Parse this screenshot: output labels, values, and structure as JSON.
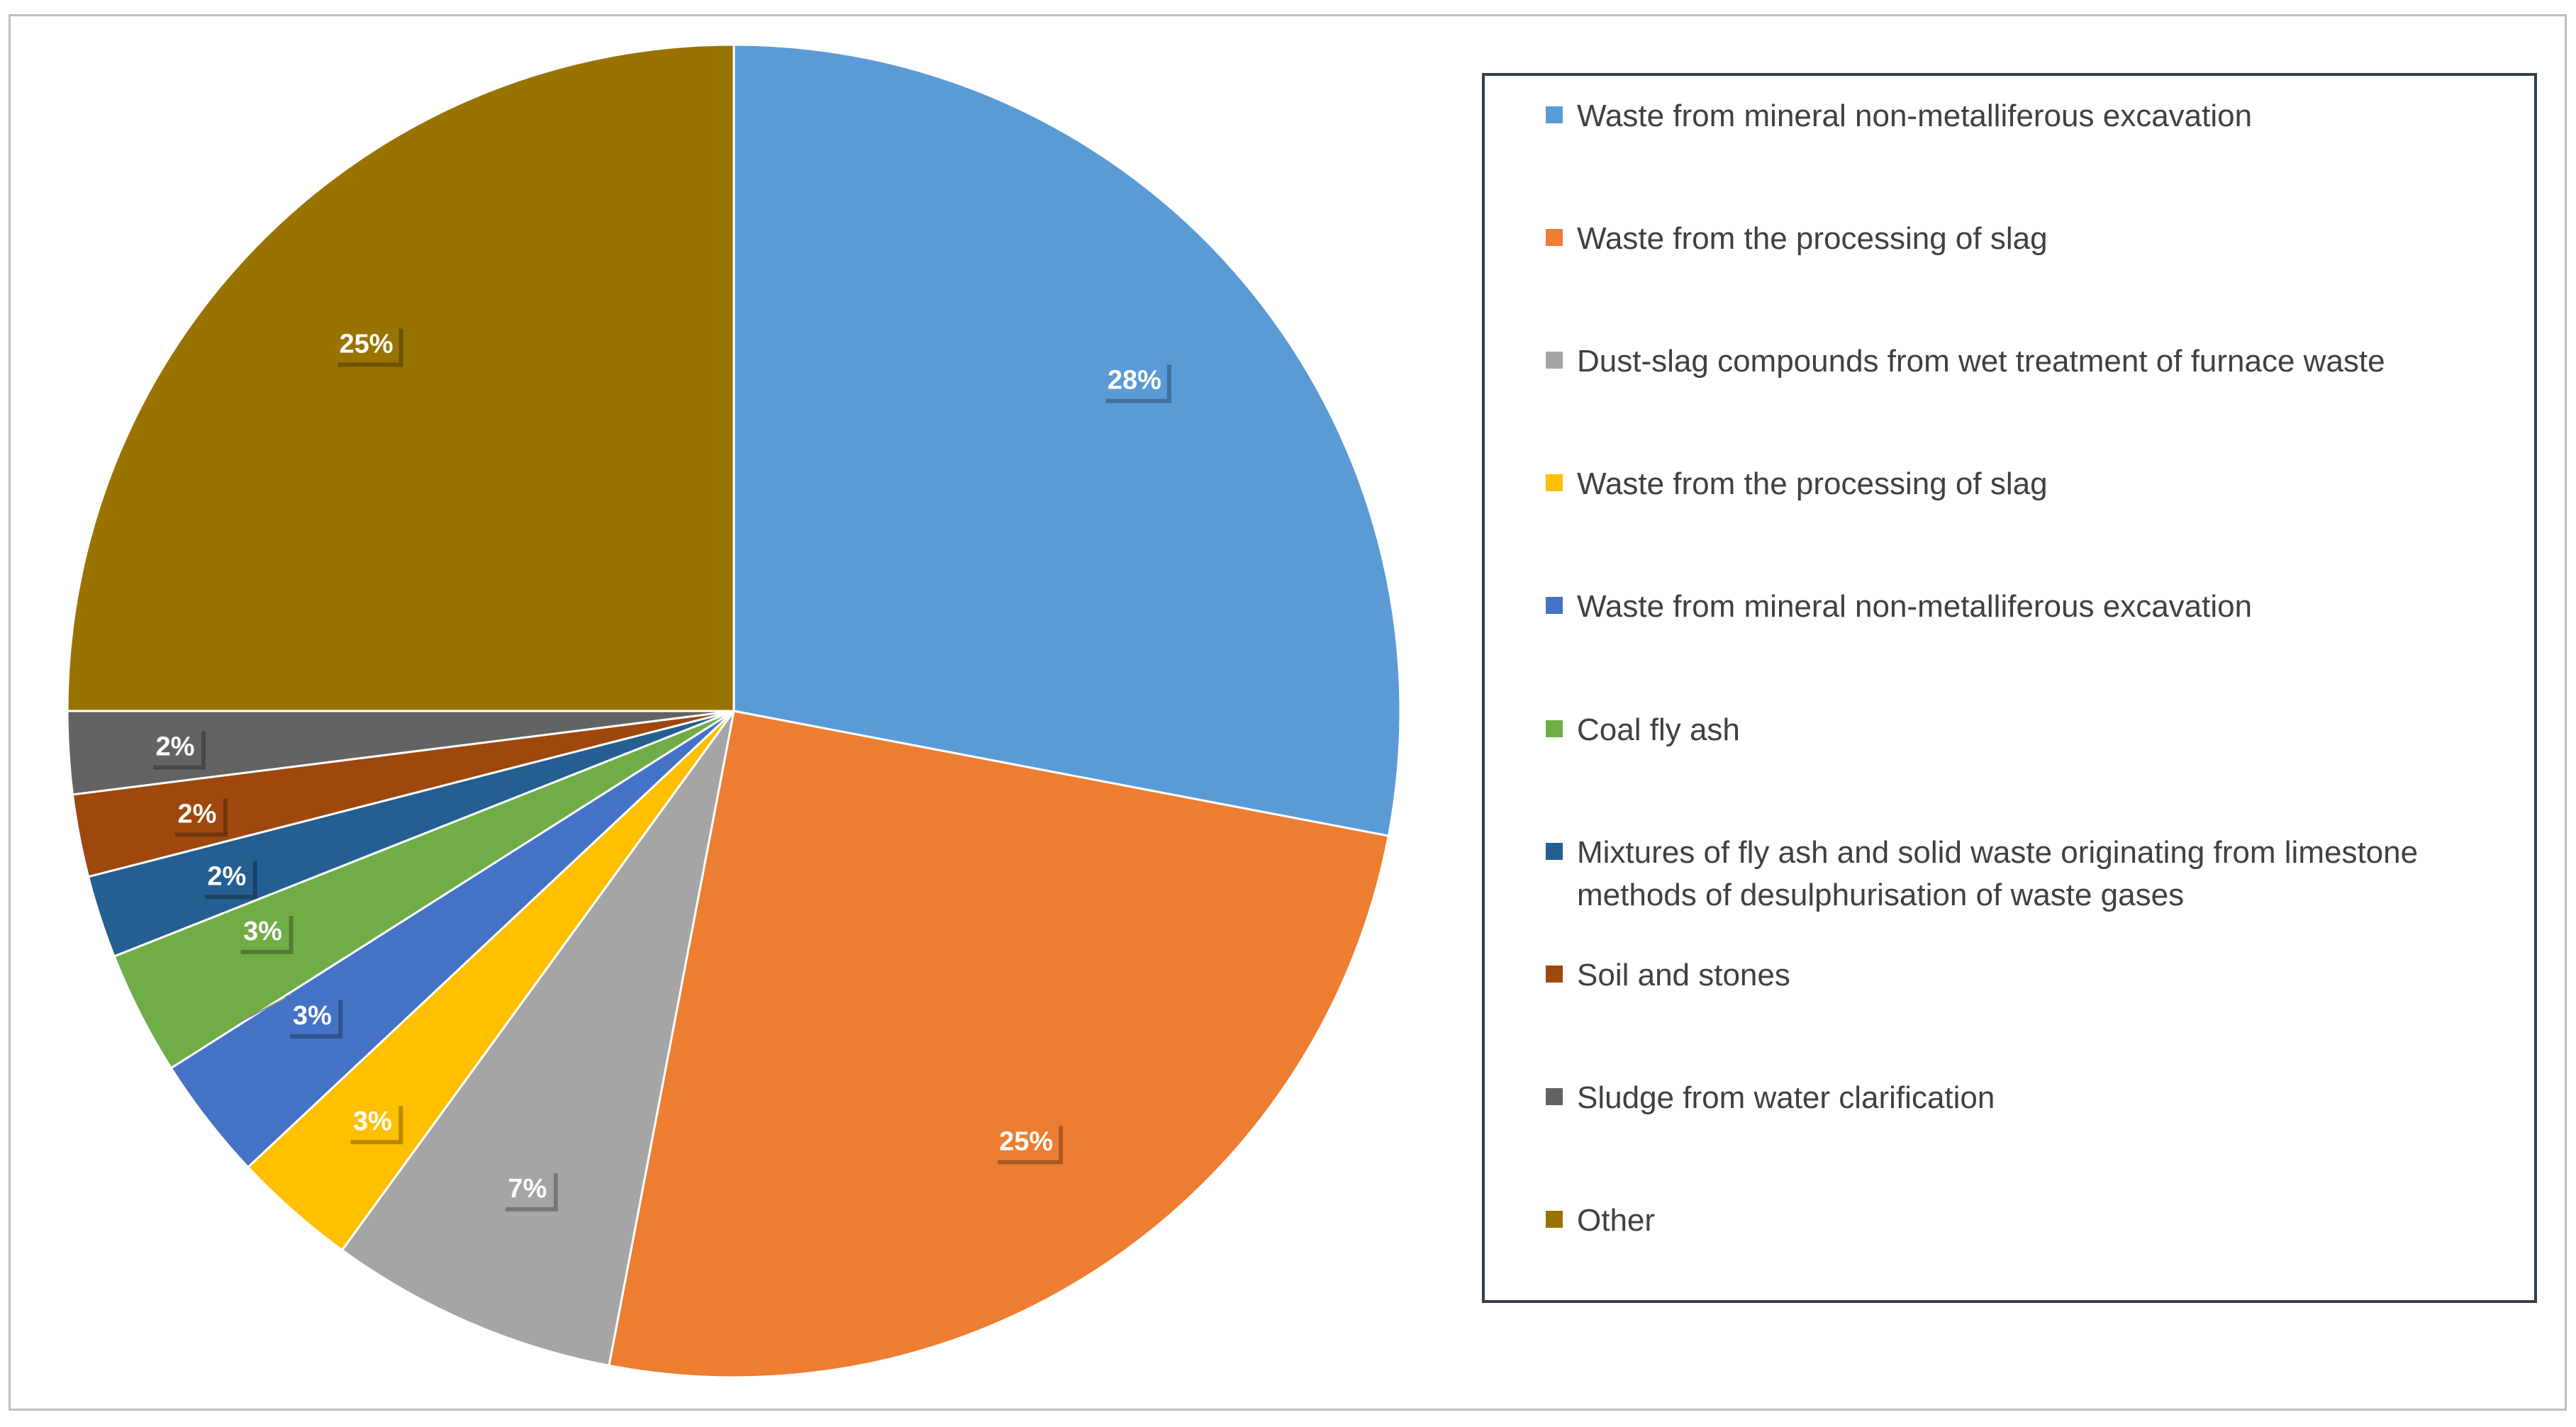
{
  "chart_data": {
    "type": "pie",
    "title": "",
    "legend_position": "right",
    "slices": [
      {
        "label": "Waste from mineral non-metalliferous excavation",
        "value": 28,
        "display": "28%",
        "color": "#5b9bd5"
      },
      {
        "label": "Waste from the processing of slag",
        "value": 25,
        "display": "25%",
        "color": "#ed7d31"
      },
      {
        "label": "Dust-slag compounds from wet treatment of furnace waste",
        "value": 7,
        "display": "7%",
        "color": "#a5a5a5"
      },
      {
        "label": "Waste from the processing of slag",
        "value": 3,
        "display": "3%",
        "color": "#ffc000"
      },
      {
        "label": "Waste from mineral non-metalliferous excavation",
        "value": 3,
        "display": "3%",
        "color": "#4472c4"
      },
      {
        "label": "Coal fly ash",
        "value": 3,
        "display": "3%",
        "color": "#70ad47"
      },
      {
        "label": "Mixtures of fly ash and solid waste originating from limestone methods of desulphurisation of waste gases",
        "value": 2,
        "display": "2%",
        "color": "#255e91"
      },
      {
        "label": "Soil and stones",
        "value": 2,
        "display": "2%",
        "color": "#9e480e"
      },
      {
        "label": "Sludge from water clarification",
        "value": 2,
        "display": "2%",
        "color": "#636363"
      },
      {
        "label": "Other",
        "value": 25,
        "display": "25%",
        "color": "#997300"
      }
    ]
  }
}
